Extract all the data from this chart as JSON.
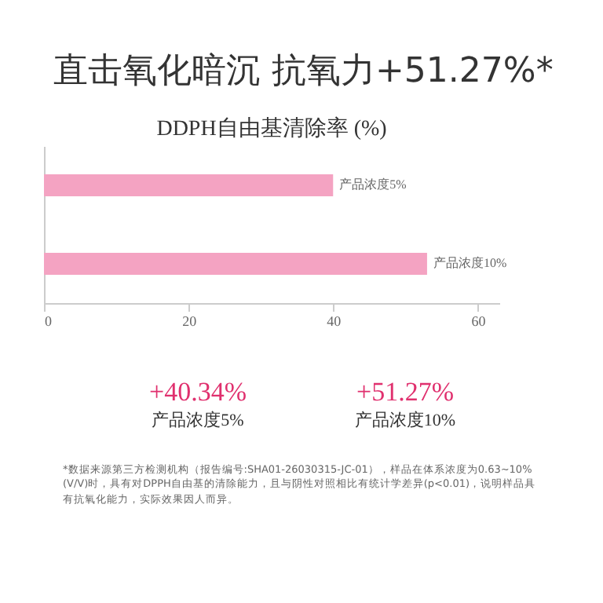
{
  "chart_data": {
    "type": "bar",
    "orientation": "horizontal",
    "title": "直击氧化暗沉 抗氧力+51.27%*",
    "subtitle": "DDPH自由基清除率 (%)",
    "categories": [
      "产品浓度5%",
      "产品浓度10%"
    ],
    "values": [
      40,
      53
    ],
    "color": "#f4a3c2",
    "xlim": [
      0,
      63
    ],
    "xticks": [
      0,
      20,
      40,
      60
    ],
    "grid": false,
    "tick_labels": "x",
    "annotations": [
      "+40.34%",
      "产品浓度5%",
      "+51.27%",
      "产品浓度10%",
      "*数据来源第三方检测机构（报告编号:SHA01-26030315-JC-01），样品在体系浓度为0.63~10%(V/V)时，具有对DPPH自由基的清除能力，且与阴性对照相比有统计学差异(p<0.01)，说明样品具有抗氧化能力，实际效果因人而异。"
    ]
  }
}
